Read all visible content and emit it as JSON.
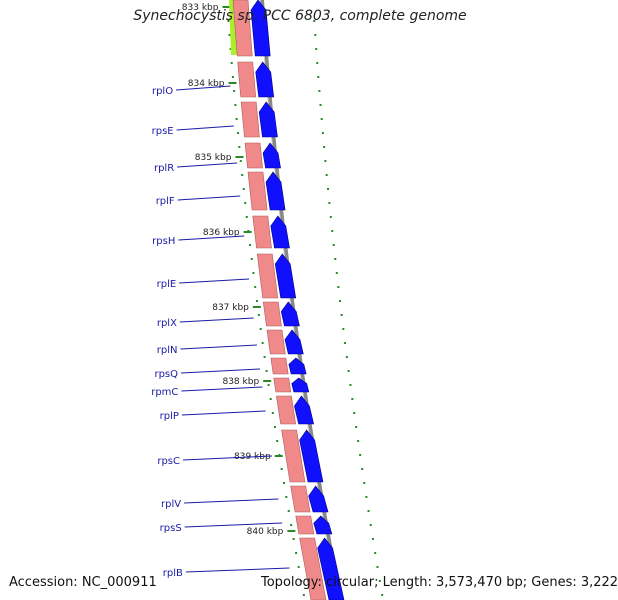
{
  "title": "Synechocystis sp. PCC 6803, complete genome",
  "footer": {
    "accession": "Accession: NC_000911",
    "topology": "Topology: circular; Length: 3,573,470 bp; Genes: 3,222"
  },
  "colors": {
    "gene_label": "#1a1aa8",
    "rna_band": "#f08a8a",
    "cds_arrow": "#1010ff",
    "backbone": "#888888",
    "tick": "#2a8a2a",
    "highlight": "#aaf02a"
  },
  "scale_labels": [
    "833 kbp",
    "834 kbp",
    "835 kbp",
    "836 kbp",
    "837 kbp",
    "838 kbp",
    "839 kbp",
    "840 kbp"
  ],
  "genes": [
    {
      "name": "rplO"
    },
    {
      "name": "rpsE"
    },
    {
      "name": "rplR"
    },
    {
      "name": "rplF"
    },
    {
      "name": "rpsH"
    },
    {
      "name": "rplE"
    },
    {
      "name": "rplX"
    },
    {
      "name": "rplN"
    },
    {
      "name": "rpsQ"
    },
    {
      "name": "rpmC"
    },
    {
      "name": "rplP"
    },
    {
      "name": "rpsC"
    },
    {
      "name": "rplV"
    },
    {
      "name": "rpsS"
    },
    {
      "name": "rplB"
    }
  ]
}
